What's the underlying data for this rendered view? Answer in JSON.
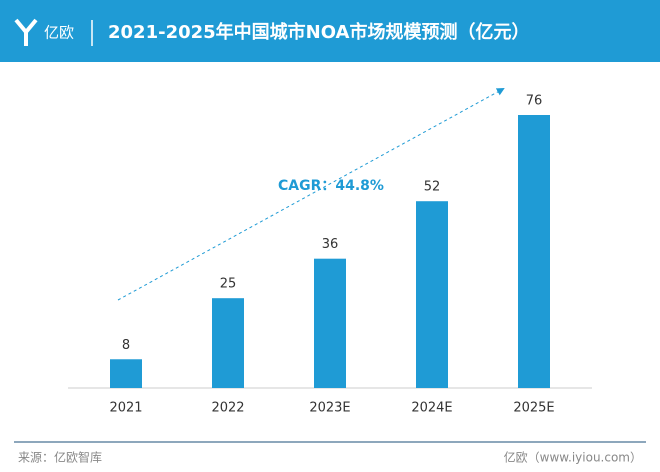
{
  "chart_data": {
    "type": "bar",
    "brand": "亿欧",
    "title": "2021-2025年中国城市NOA市场规模预测（亿元）",
    "annotation": "CAGR：44.8%",
    "categories": [
      "2021",
      "2022",
      "2023E",
      "2024E",
      "2025E"
    ],
    "values": [
      8,
      25,
      36,
      52,
      76
    ],
    "color": "#1f9bd5",
    "source": "来源：亿欧智库",
    "footer": "亿欧（www.iyiou.com）"
  }
}
